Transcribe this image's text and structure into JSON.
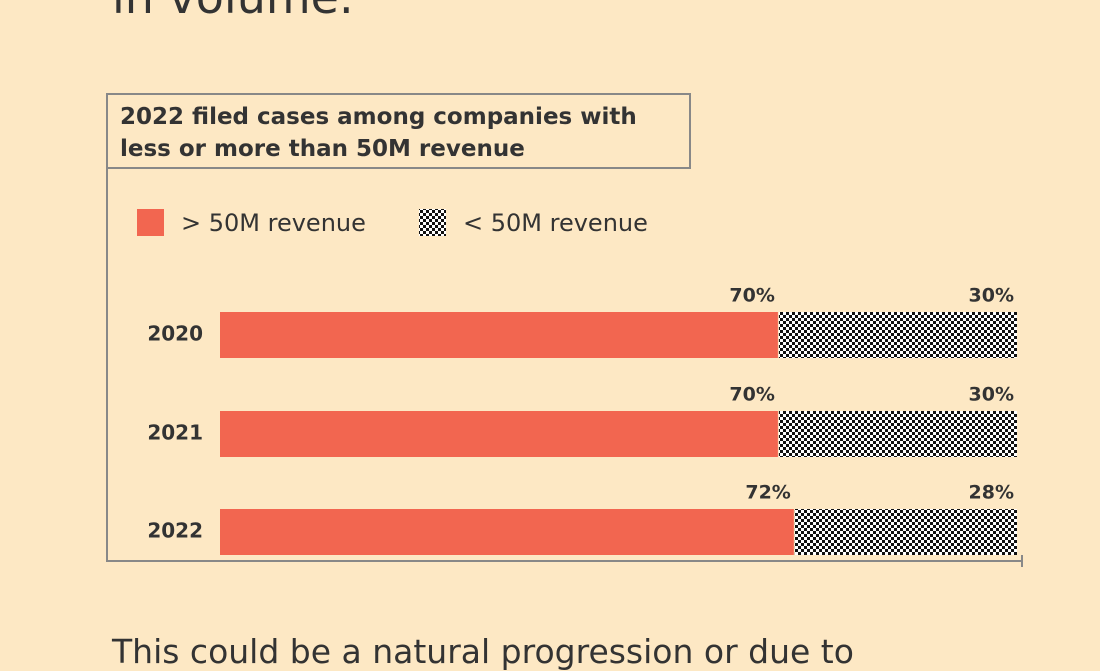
{
  "intro_text": "in volume.",
  "chart_data": {
    "type": "stacked-bar-horizontal",
    "title": "2022 filed cases among companies with less or more than 50M revenue",
    "categories": [
      "2020",
      "2021",
      "2022"
    ],
    "series": [
      {
        "name": "> 50M revenue",
        "color": "#f26650",
        "values": [
          70,
          70,
          72
        ],
        "value_labels": [
          "70%",
          "70%",
          "72%"
        ]
      },
      {
        "name": "< 50M revenue",
        "color": "#111111",
        "pattern": "checker",
        "values": [
          30,
          30,
          28
        ],
        "value_labels": [
          "30%",
          "30%",
          "28%"
        ]
      }
    ],
    "xlim": [
      0,
      100
    ]
  },
  "outro_text": "This could be a natural progression or due to"
}
